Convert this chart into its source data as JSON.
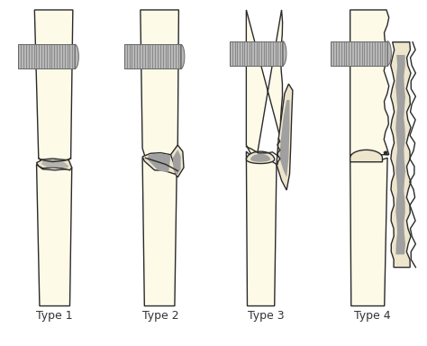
{
  "background_color": "#ffffff",
  "bone_fill": "#FEFAE8",
  "bone_outline": "#2a2a2a",
  "screw_fill": "#b8b8b8",
  "screw_outline": "#666666",
  "fragment_fill": "#EDE5CC",
  "fragment_gray": "#a0a0a0",
  "labels": [
    "Type 1",
    "Type 2",
    "Type 3",
    "Type 4"
  ],
  "label_fontsize": 9,
  "label_color": "#333333",
  "figsize": [
    4.74,
    3.84
  ],
  "dpi": 100
}
